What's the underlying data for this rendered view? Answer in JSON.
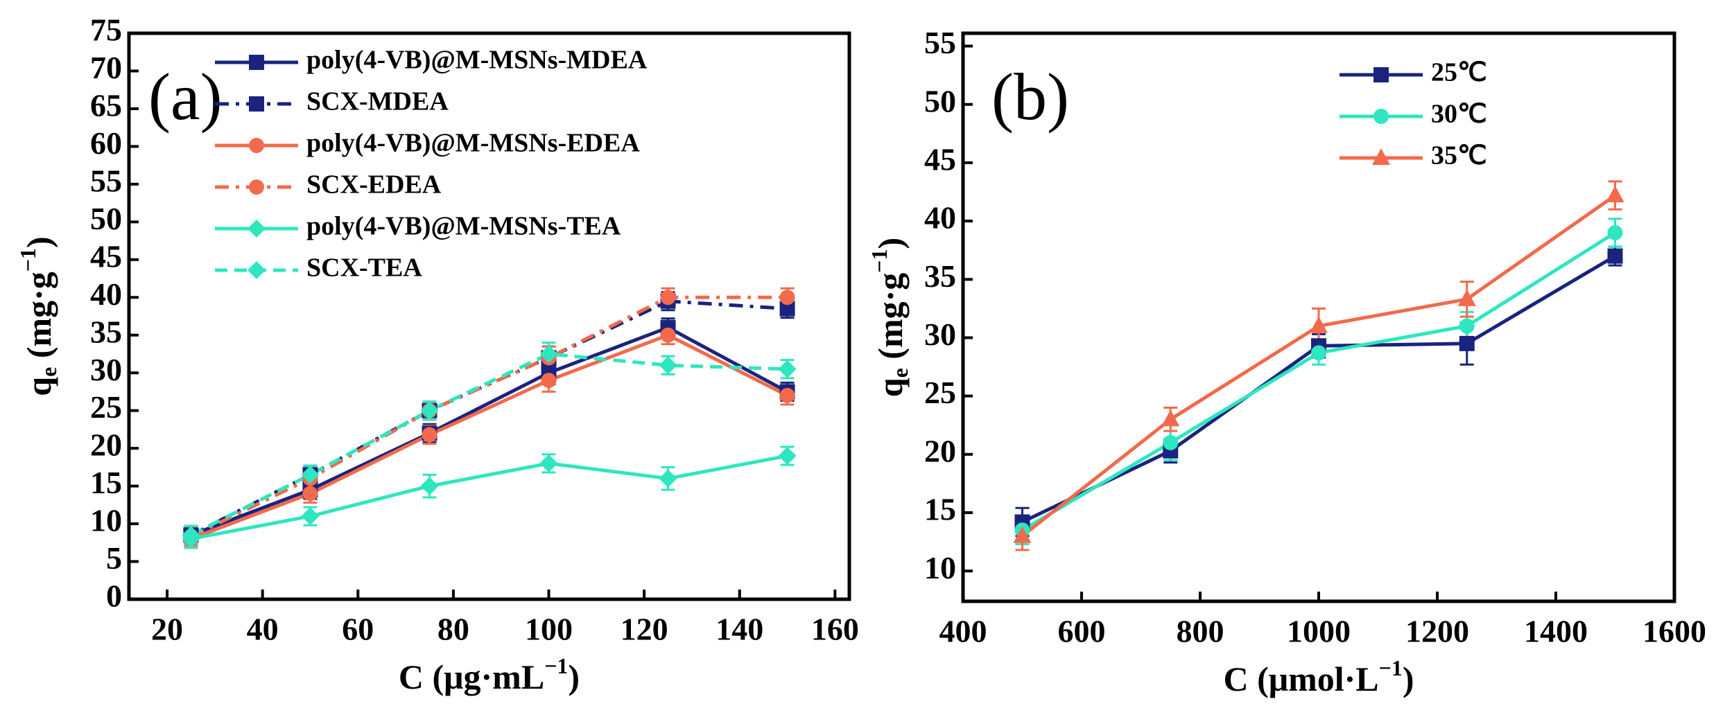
{
  "chart_data": [
    {
      "type": "line",
      "panel_label": "(a)",
      "x_label": {
        "text": "C (μg·mL",
        "sup": "−1",
        "end": ")"
      },
      "y_label": {
        "base": "q",
        "sub": "e",
        "text": " (mg·g",
        "sup": "−1",
        "end": ")"
      },
      "x": [
        25,
        50,
        75,
        100,
        125,
        150
      ],
      "xlim": [
        12,
        163
      ],
      "xticks": [
        20,
        40,
        60,
        80,
        100,
        120,
        140,
        160
      ],
      "ylim": [
        0,
        75
      ],
      "yticks": [
        0,
        5,
        10,
        15,
        20,
        25,
        30,
        35,
        40,
        45,
        50,
        55,
        60,
        65,
        70,
        75
      ],
      "legend": "upper center",
      "series": [
        {
          "name": "poly(4-VB)@M-MSNs-MDEA",
          "color": "#1a237e",
          "marker": "square",
          "linestyle": "solid",
          "values": [
            8.5,
            14.5,
            22,
            30,
            36,
            27.5
          ],
          "errors": [
            1.2,
            1.2,
            1.2,
            1.5,
            1.2,
            1.2
          ]
        },
        {
          "name": "SCX-MDEA",
          "color": "#1a237e",
          "marker": "square",
          "linestyle": "dashdot",
          "values": [
            8.5,
            16.5,
            25,
            32,
            39.5,
            38.5
          ],
          "errors": [
            1.2,
            1.2,
            1.2,
            1.5,
            1.2,
            1.2
          ]
        },
        {
          "name": "poly(4-VB)@M-MSNs-EDEA",
          "color": "#f26a4b",
          "marker": "circle",
          "linestyle": "solid",
          "values": [
            8,
            14,
            21.8,
            29,
            35,
            27
          ],
          "errors": [
            1.2,
            1.2,
            1.2,
            1.5,
            1.2,
            1.2
          ]
        },
        {
          "name": "SCX-EDEA",
          "color": "#f26a4b",
          "marker": "circle",
          "linestyle": "dashdot",
          "values": [
            8.3,
            16,
            25,
            32,
            40,
            40
          ],
          "errors": [
            1.2,
            1.2,
            1.2,
            1.5,
            1.2,
            1.2
          ]
        },
        {
          "name": "poly(4-VB)@M-MSNs-TEA",
          "color": "#2ee6c0",
          "marker": "diamond",
          "linestyle": "solid",
          "values": [
            8,
            11,
            15,
            18,
            16,
            19
          ],
          "errors": [
            1.2,
            1.2,
            1.5,
            1.2,
            1.5,
            1.2
          ]
        },
        {
          "name": "SCX-TEA",
          "color": "#2ee6c0",
          "marker": "diamond",
          "linestyle": "dashed",
          "values": [
            8.5,
            16.5,
            25,
            32.5,
            31,
            30.5
          ],
          "errors": [
            1.2,
            1.2,
            1.2,
            1.5,
            1.2,
            1.2
          ]
        }
      ]
    },
    {
      "type": "line",
      "panel_label": "(b)",
      "x_label": {
        "text": "C (μmol·L",
        "sup": "−1",
        "end": ")"
      },
      "y_label": {
        "base": "q",
        "sub": "e",
        "text": " (mg·g",
        "sup": "−1",
        "end": ")"
      },
      "x": [
        500,
        750,
        1000,
        1250,
        1500
      ],
      "xlim": [
        400,
        1600
      ],
      "xticks": [
        400,
        600,
        800,
        1000,
        1200,
        1400,
        1600
      ],
      "ylim": [
        7.4,
        56.1
      ],
      "yticks": [
        10,
        15,
        20,
        25,
        30,
        35,
        40,
        45,
        50,
        55
      ],
      "legend": "upper right",
      "series": [
        {
          "name": "25℃",
          "color": "#1a237e",
          "marker": "square",
          "linestyle": "solid",
          "values": [
            14.2,
            20.3,
            29.3,
            29.5,
            37
          ],
          "errors": [
            1.2,
            1,
            1,
            1.8,
            0.8
          ]
        },
        {
          "name": "30℃",
          "color": "#2ee6c0",
          "marker": "circle",
          "linestyle": "solid",
          "values": [
            13.5,
            21,
            28.7,
            31,
            39
          ],
          "errors": [
            1.2,
            1.5,
            1,
            1.2,
            1.2
          ]
        },
        {
          "name": "35℃",
          "color": "#f26a4b",
          "marker": "triangle",
          "linestyle": "solid",
          "values": [
            13,
            23,
            31,
            33.3,
            42.2
          ],
          "errors": [
            1.2,
            1,
            1.5,
            1.5,
            1.2
          ]
        }
      ]
    }
  ]
}
